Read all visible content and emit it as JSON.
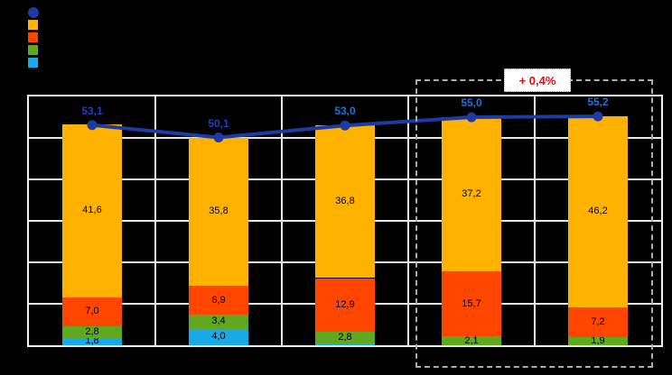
{
  "chart_data": {
    "type": "bar",
    "stacked": true,
    "title": "",
    "xlabel": "",
    "ylabel": "",
    "categories": [
      "",
      "",
      "",
      "",
      ""
    ],
    "categories_visible": false,
    "ylim": [
      0,
      60
    ],
    "grid_step": 10,
    "grid_on": true,
    "series": [
      {
        "name": "cyan-segment",
        "color": "#1BA8E8",
        "values": [
          1.8,
          4.0,
          0.5,
          0,
          0
        ]
      },
      {
        "name": "green-segment",
        "color": "#60A81E",
        "values": [
          2.8,
          3.4,
          2.8,
          2.1,
          1.9
        ]
      },
      {
        "name": "red-segment",
        "color": "#FF4500",
        "values": [
          7.0,
          6.9,
          12.9,
          15.7,
          7.2
        ]
      },
      {
        "name": "orange-segment",
        "color": "#FFB300",
        "values": [
          41.6,
          35.8,
          36.8,
          37.2,
          46.2
        ]
      }
    ],
    "line_series": {
      "name": "total-line",
      "color": "#1C3BA4",
      "values": [
        53.1,
        50.1,
        53.0,
        55.0,
        55.2
      ],
      "labels": [
        "53,1",
        "50,1",
        "53,0",
        "55,0",
        "55,2"
      ],
      "label_colors": [
        "#1E3FC4",
        "#1E3FC4",
        "#1B74D8",
        "#1B74D8",
        "#1B74D8"
      ]
    },
    "segment_labels_decimal_separator": ",",
    "annotation": {
      "text": "+ 0,4%",
      "text_color": "#FF0000",
      "box_background": "#FFFFFF",
      "applies_to_last_n_categories": 2,
      "highlight_border_color": "#ACACAC"
    },
    "legend": {
      "position": "top-left",
      "items": [
        {
          "shape": "circle",
          "color": "#1C3BA4",
          "name": "total-line-marker"
        },
        {
          "shape": "square",
          "color": "#FFB300",
          "name": "orange-segment-swatch"
        },
        {
          "shape": "square",
          "color": "#FF4500",
          "name": "red-segment-swatch"
        },
        {
          "shape": "square",
          "color": "#60A81E",
          "name": "green-segment-swatch"
        },
        {
          "shape": "square",
          "color": "#1BA8E8",
          "name": "cyan-segment-swatch"
        }
      ],
      "labels_visible": false
    },
    "colors": {
      "background": "#000000",
      "plot_background": "#000000",
      "gridline": "#E9E9E9",
      "plot_border": "#EFEFEF"
    }
  }
}
